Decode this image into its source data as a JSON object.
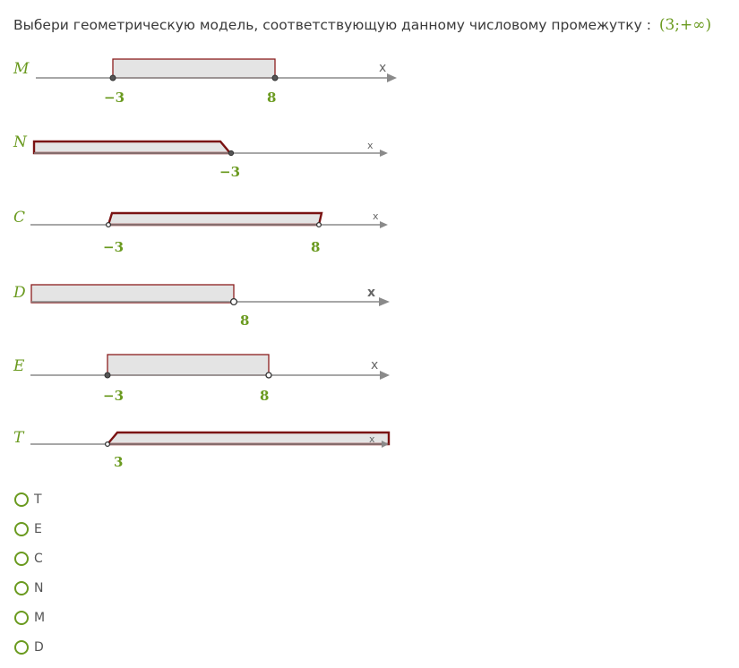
{
  "question": {
    "text": "Выбери геометрическую модель, соответствующую данному числовому промежутку :",
    "interval": "(3;+∞)"
  },
  "models": [
    {
      "label": "M",
      "axis_var": "x",
      "ticks": [
        "−3",
        "8"
      ]
    },
    {
      "label": "N",
      "axis_var": "x",
      "ticks": [
        "−3"
      ]
    },
    {
      "label": "C",
      "axis_var": "x",
      "ticks": [
        "−3",
        "8"
      ]
    },
    {
      "label": "D",
      "axis_var": "x",
      "ticks": [
        "8"
      ]
    },
    {
      "label": "E",
      "axis_var": "x",
      "ticks": [
        "−3",
        "8"
      ]
    },
    {
      "label": "T",
      "axis_var": "x",
      "ticks": [
        "3"
      ]
    }
  ],
  "options": [
    {
      "label": "T"
    },
    {
      "label": "E"
    },
    {
      "label": "C"
    },
    {
      "label": "N"
    },
    {
      "label": "M"
    },
    {
      "label": "D"
    }
  ],
  "colors": {
    "accent": "#6a9a1f",
    "interval_border": "#8b1e1e",
    "interval_fill": "#e4e4e4",
    "axis": "#8a8a8a"
  }
}
